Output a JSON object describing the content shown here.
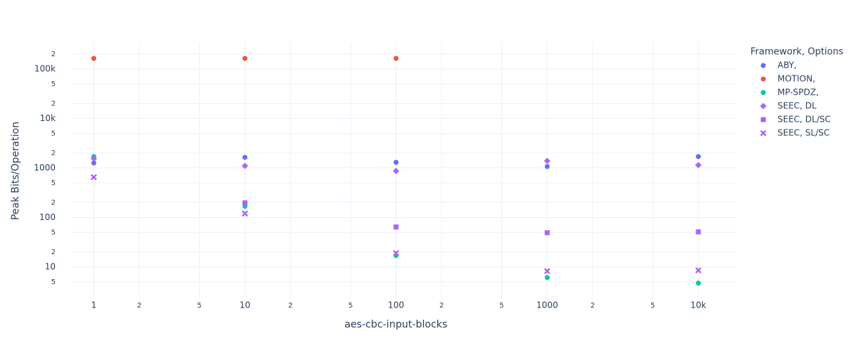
{
  "chart_data": {
    "type": "scatter",
    "x_label": "aes-cbc-input-blocks",
    "y_label": "Peak Bits/Operation",
    "legend_title": "Framework, Options",
    "legend_position": "right",
    "x_scale": "log",
    "y_scale": "log",
    "grid": true,
    "x": [
      1,
      10,
      100,
      1000,
      10000
    ],
    "xlim": [
      0.71,
      17800
    ],
    "ylim": [
      2.24,
      340000
    ],
    "xticks": [
      1,
      2,
      5,
      10,
      {
        "value": 20,
        "label": "2"
      },
      {
        "value": 50,
        "label": "5"
      },
      100,
      {
        "value": 200,
        "label": "2"
      },
      {
        "value": 500,
        "label": "5"
      },
      1000,
      {
        "value": 2000,
        "label": "2"
      },
      {
        "value": 5000,
        "label": "5"
      },
      {
        "value": 10000,
        "label": "10k"
      }
    ],
    "yticks": [
      5,
      10,
      {
        "value": 20,
        "label": "2"
      },
      {
        "value": 50,
        "label": "5"
      },
      100,
      {
        "value": 200,
        "label": "2"
      },
      {
        "value": 500,
        "label": "5"
      },
      1000,
      {
        "value": 2000,
        "label": "2"
      },
      {
        "value": 5000,
        "label": "5"
      },
      {
        "value": 10000,
        "label": "10k"
      },
      {
        "value": 20000,
        "label": "2"
      },
      {
        "value": 50000,
        "label": "5"
      },
      {
        "value": 100000,
        "label": "100k"
      },
      {
        "value": 200000,
        "label": "2"
      }
    ],
    "series": [
      {
        "name": "ABY,",
        "color": "#636efa",
        "symbol": "circle",
        "values": [
          1260,
          1640,
          1300,
          1070,
          1700
        ]
      },
      {
        "name": "MOTION,",
        "color": "#ef553b",
        "symbol": "circle",
        "values": [
          164000,
          164000,
          164000,
          null,
          null
        ]
      },
      {
        "name": "MP-SPDZ,",
        "color": "#00cc96",
        "symbol": "circle",
        "values": [
          1700,
          167,
          17,
          6.1,
          4.7
        ]
      },
      {
        "name": "SEEC, DL",
        "color": "#ab63fa",
        "symbol": "diamond",
        "values": [
          1540,
          1100,
          870,
          1390,
          1140
        ]
      },
      {
        "name": "SEEC, DL/SC",
        "color": "#ab63fa",
        "symbol": "square",
        "values": [
          null,
          197,
          64,
          49,
          51
        ]
      },
      {
        "name": "SEEC, SL/SC",
        "color": "#ab63fa",
        "symbol": "x",
        "values": [
          650,
          120,
          19,
          8.2,
          8.5
        ]
      }
    ]
  }
}
